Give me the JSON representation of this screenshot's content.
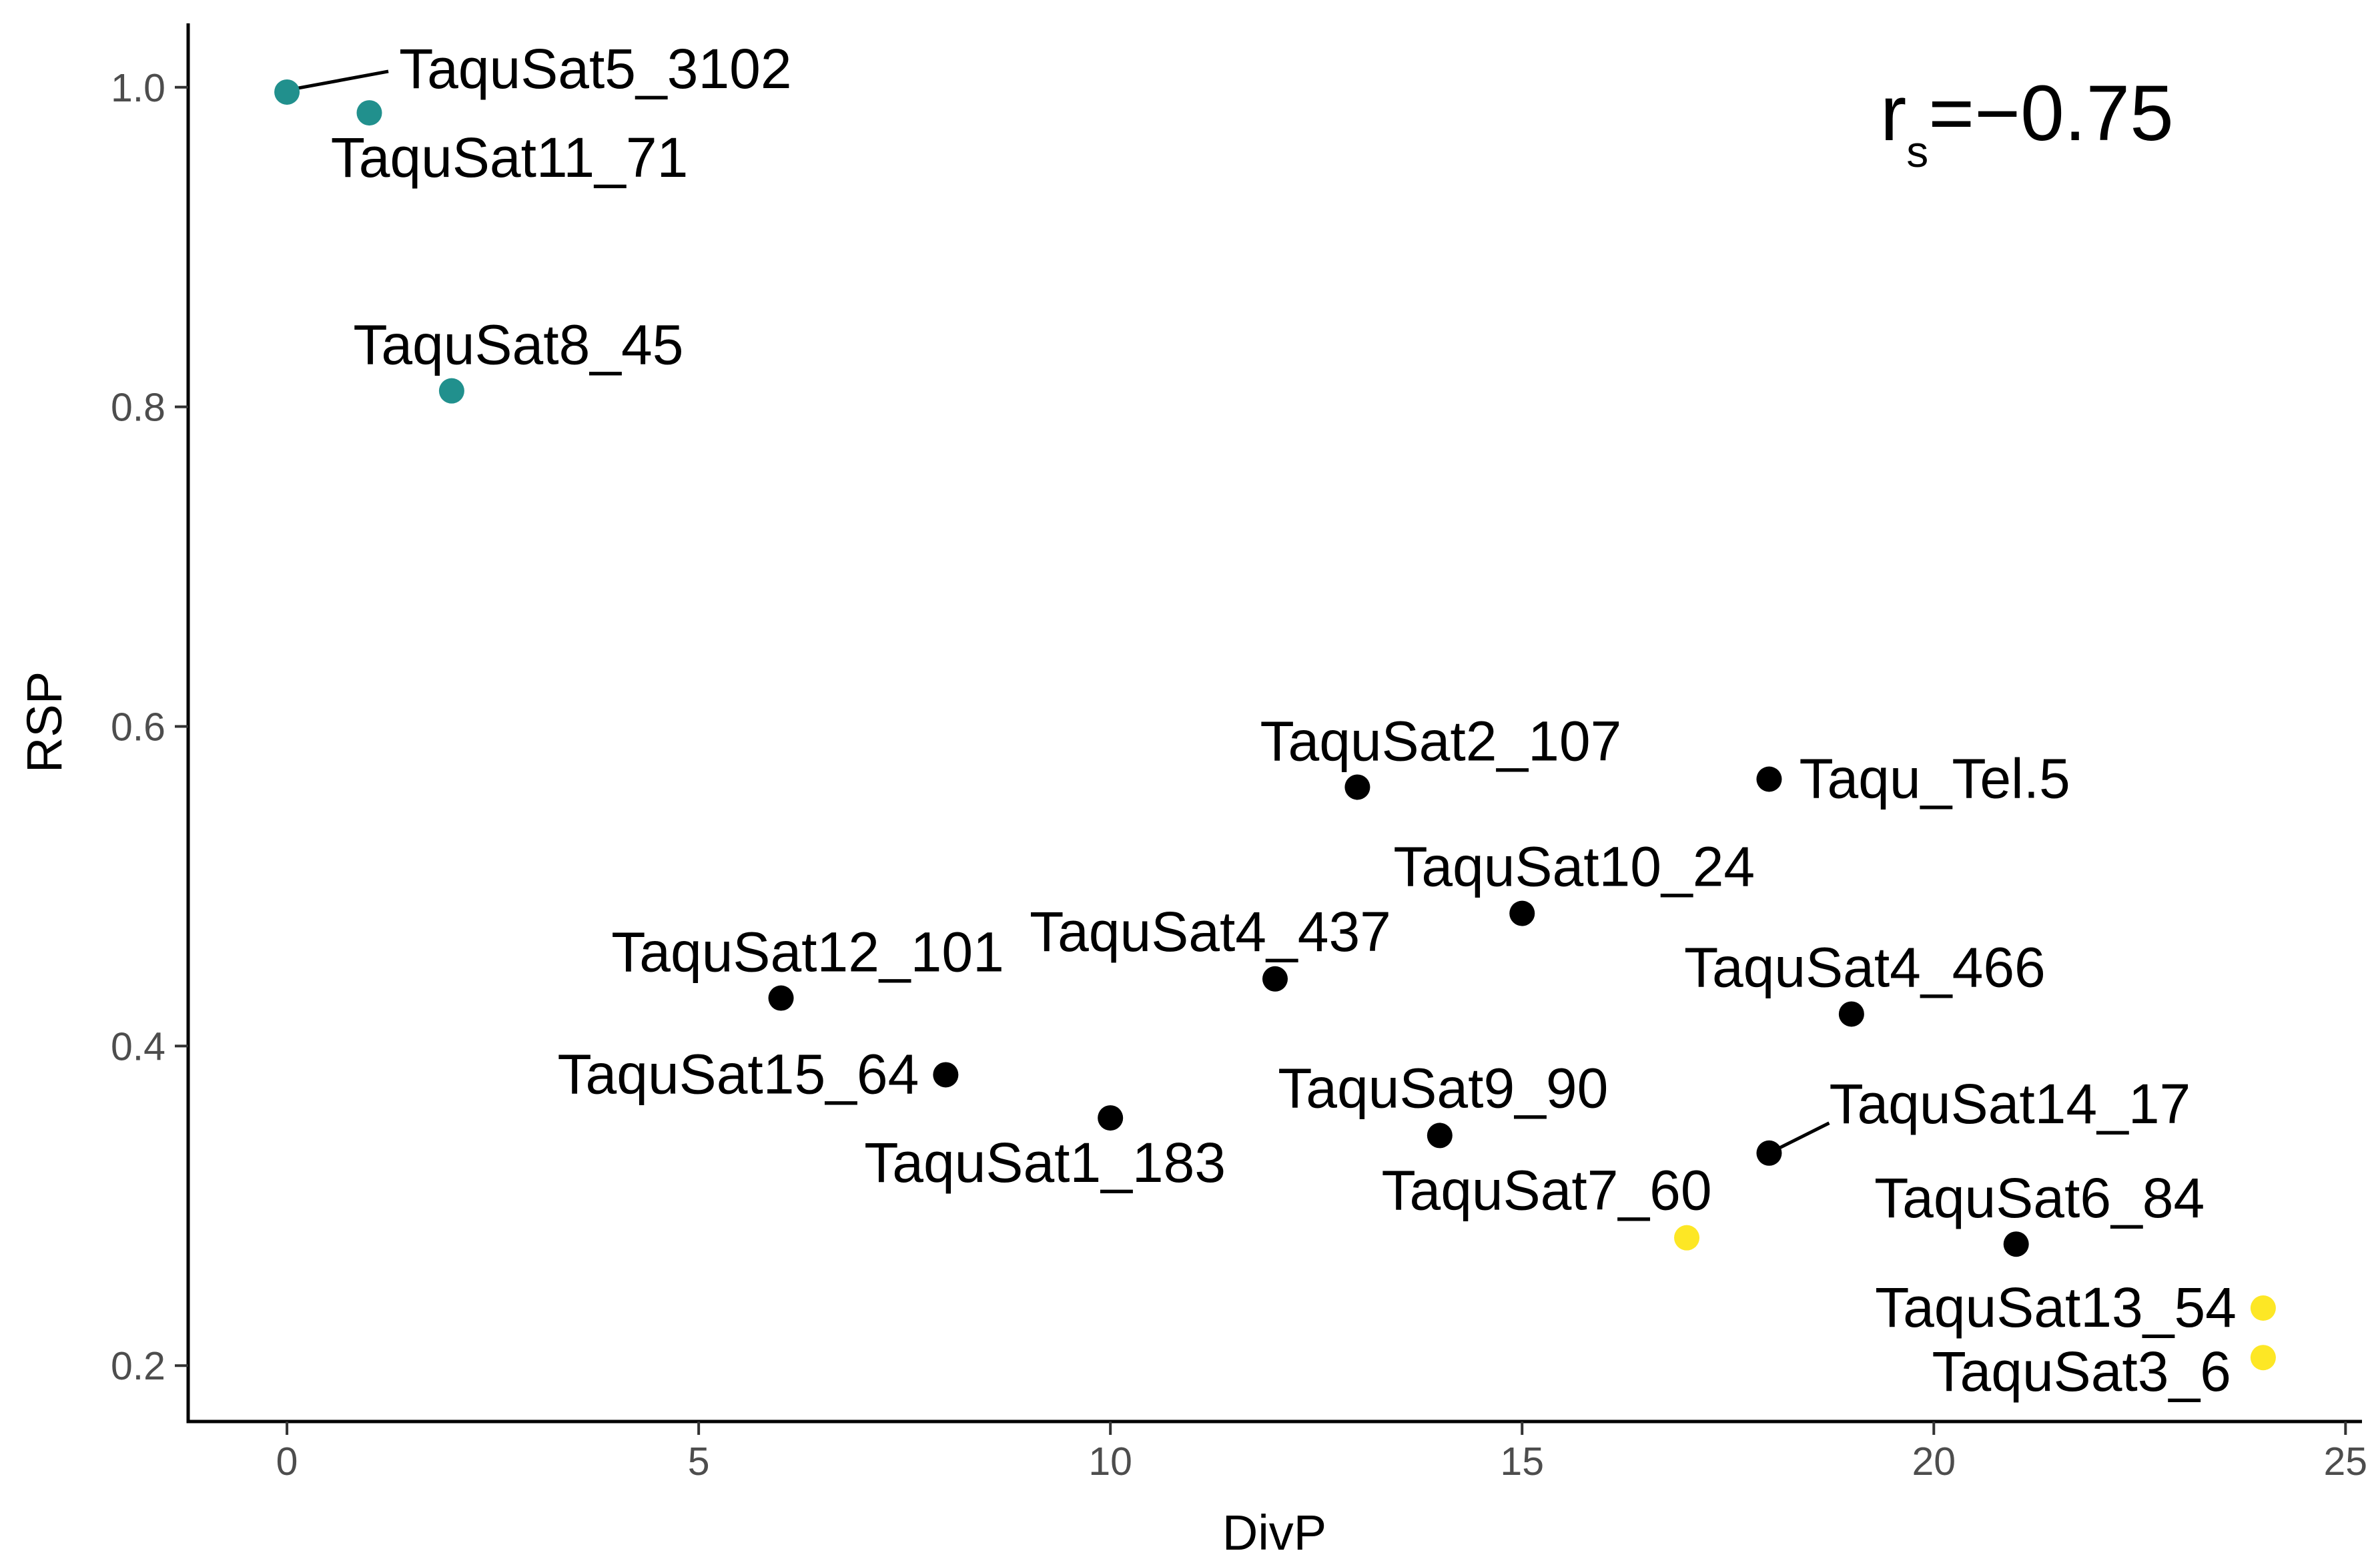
{
  "chart_data": {
    "type": "scatter",
    "title": "",
    "xlabel": "DivP",
    "ylabel": "RSP",
    "xlim": [
      -1.2,
      25.2
    ],
    "ylim": [
      0.165,
      1.04
    ],
    "xticks": [
      0,
      5,
      10,
      15,
      20,
      25
    ],
    "xtick_labels": [
      "0",
      "5",
      "10",
      "15",
      "20",
      "25"
    ],
    "yticks": [
      0.2,
      0.4,
      0.6,
      0.8,
      1.0
    ],
    "ytick_labels": [
      "0.2",
      "0.4",
      "0.6",
      "0.8",
      "1.0"
    ],
    "grid": false,
    "colors": {
      "teal": "#21908d",
      "black": "#000000",
      "yellow": "#fde725"
    },
    "annotation": {
      "base": "r",
      "subscript": "s",
      "value": "=−0.75"
    },
    "points": [
      {
        "name": "TaquSat5_3102",
        "x": 0,
        "y": 0.997,
        "group": "teal"
      },
      {
        "name": "TaquSat11_71",
        "x": 1,
        "y": 0.984,
        "group": "teal"
      },
      {
        "name": "TaquSat8_45",
        "x": 2,
        "y": 0.81,
        "group": "teal"
      },
      {
        "name": "TaquSat2_107",
        "x": 13,
        "y": 0.562,
        "group": "black"
      },
      {
        "name": "Taqu_Tel.5",
        "x": 18,
        "y": 0.567,
        "group": "black"
      },
      {
        "name": "TaquSat10_24",
        "x": 15,
        "y": 0.483,
        "group": "black"
      },
      {
        "name": "TaquSat4_437",
        "x": 12,
        "y": 0.442,
        "group": "black"
      },
      {
        "name": "TaquSat12_101",
        "x": 6,
        "y": 0.43,
        "group": "black"
      },
      {
        "name": "TaquSat4_466",
        "x": 19,
        "y": 0.42,
        "group": "black"
      },
      {
        "name": "TaquSat15_64",
        "x": 8,
        "y": 0.382,
        "group": "black"
      },
      {
        "name": "TaquSat1_183",
        "x": 10,
        "y": 0.355,
        "group": "black"
      },
      {
        "name": "TaquSat9_90",
        "x": 14,
        "y": 0.344,
        "group": "black"
      },
      {
        "name": "TaquSat14_17",
        "x": 18,
        "y": 0.333,
        "group": "black"
      },
      {
        "name": "TaquSat6_84",
        "x": 21,
        "y": 0.276,
        "group": "black"
      },
      {
        "name": "TaquSat7_60",
        "x": 17,
        "y": 0.28,
        "group": "yellow"
      },
      {
        "name": "TaquSat13_54",
        "x": 24,
        "y": 0.236,
        "group": "yellow"
      },
      {
        "name": "TaquSat3_6",
        "x": 24,
        "y": 0.205,
        "group": "yellow"
      }
    ]
  }
}
